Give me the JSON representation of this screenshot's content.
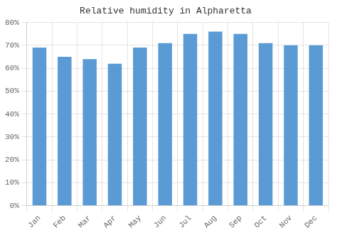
{
  "chart_data": {
    "type": "bar",
    "title": "Relative humidity in Alpharetta",
    "categories": [
      "Jan",
      "Feb",
      "Mar",
      "Apr",
      "May",
      "Jun",
      "Jul",
      "Aug",
      "Sep",
      "Oct",
      "Nov",
      "Dec"
    ],
    "values": [
      69,
      65,
      64,
      62,
      69,
      71,
      75,
      76,
      75,
      71,
      70,
      70
    ],
    "color": "#5B9BD5",
    "ylim": [
      0,
      80
    ],
    "yticks": [
      {
        "value": 0,
        "label": "0%"
      },
      {
        "value": 10,
        "label": "10%"
      },
      {
        "value": 20,
        "label": "20%"
      },
      {
        "value": 30,
        "label": "30%"
      },
      {
        "value": 40,
        "label": "40%"
      },
      {
        "value": 50,
        "label": "50%"
      },
      {
        "value": 60,
        "label": "60%"
      },
      {
        "value": 70,
        "label": "70%"
      },
      {
        "value": 80,
        "label": "80%"
      }
    ],
    "grid": true
  }
}
